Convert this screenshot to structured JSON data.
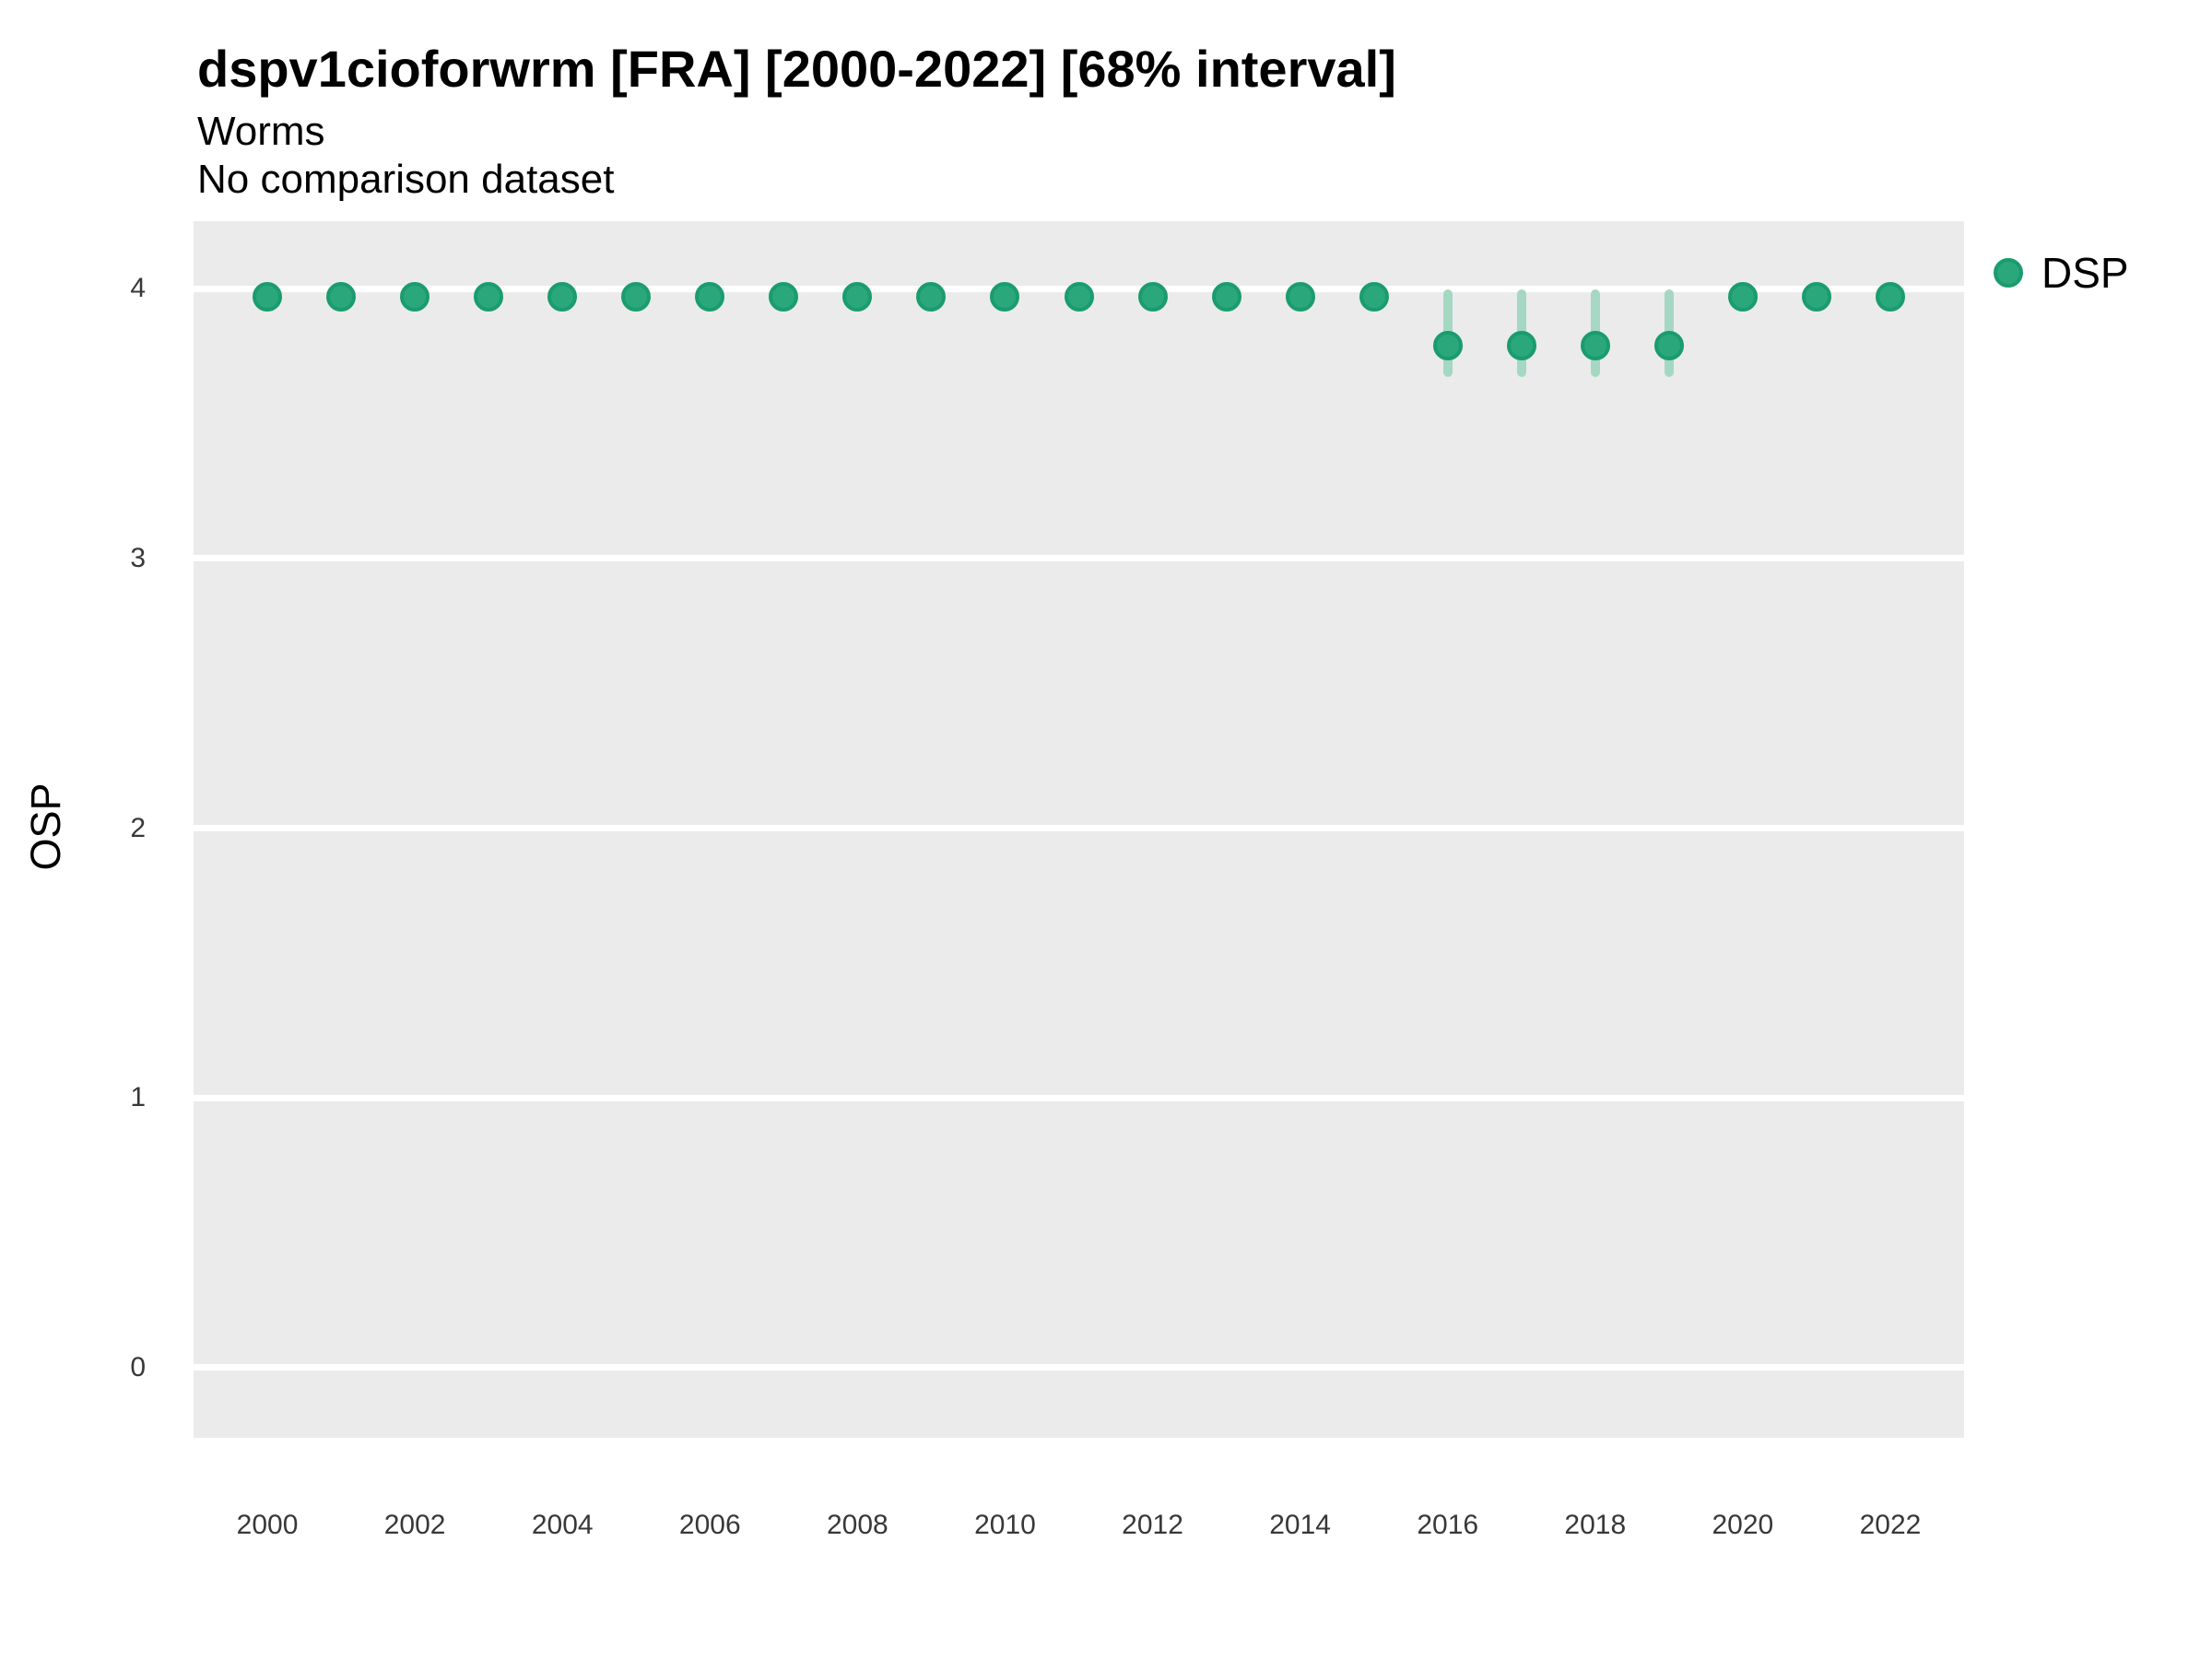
{
  "header": {
    "title": "dspv1cioforwrm [FRA] [2000-2022] [68% interval]",
    "subtitle": "Worms",
    "note": "No comparison dataset"
  },
  "legend": {
    "label": "DSP"
  },
  "colors": {
    "panel_background": "#ebebeb",
    "gridline": "#ffffff",
    "point_fill": "#2aa87c",
    "point_stroke": "#1a9c6e",
    "interval_bar": "#a5d8c3",
    "tick_text": "#383838",
    "title_text": "#000000"
  },
  "chart_data": {
    "type": "scatter",
    "title": "dspv1cioforwrm [FRA] [2000-2022] [68% interval]",
    "subtitle": "Worms",
    "note": "No comparison dataset",
    "xlabel": "",
    "ylabel": "OSP",
    "legend_position": "right-top",
    "grid": "horizontal major gridlines only",
    "xlim": [
      1999,
      2023
    ],
    "ylim": [
      -0.26,
      4.25
    ],
    "x_ticks": [
      2000,
      2002,
      2004,
      2006,
      2008,
      2010,
      2012,
      2014,
      2016,
      2018,
      2020,
      2022
    ],
    "y_ticks": [
      0,
      1,
      2,
      3,
      4
    ],
    "series": [
      {
        "name": "DSP",
        "x": [
          2000,
          2001,
          2002,
          2003,
          2004,
          2005,
          2006,
          2007,
          2008,
          2009,
          2010,
          2011,
          2012,
          2013,
          2014,
          2015,
          2016,
          2017,
          2018,
          2019,
          2020,
          2021,
          2022
        ],
        "y": [
          3.97,
          3.97,
          3.97,
          3.97,
          3.97,
          3.97,
          3.97,
          3.97,
          3.97,
          3.97,
          3.97,
          3.97,
          3.97,
          3.97,
          3.97,
          3.97,
          3.79,
          3.79,
          3.79,
          3.79,
          3.97,
          3.97,
          3.97
        ],
        "interval_68_lo": [
          null,
          null,
          null,
          null,
          null,
          null,
          null,
          null,
          null,
          null,
          null,
          null,
          null,
          null,
          null,
          null,
          3.69,
          3.69,
          3.69,
          3.69,
          null,
          null,
          null
        ],
        "interval_68_hi": [
          null,
          null,
          null,
          null,
          null,
          null,
          null,
          null,
          null,
          null,
          null,
          null,
          null,
          null,
          null,
          null,
          3.98,
          3.98,
          3.98,
          3.98,
          null,
          null,
          null
        ]
      }
    ]
  }
}
